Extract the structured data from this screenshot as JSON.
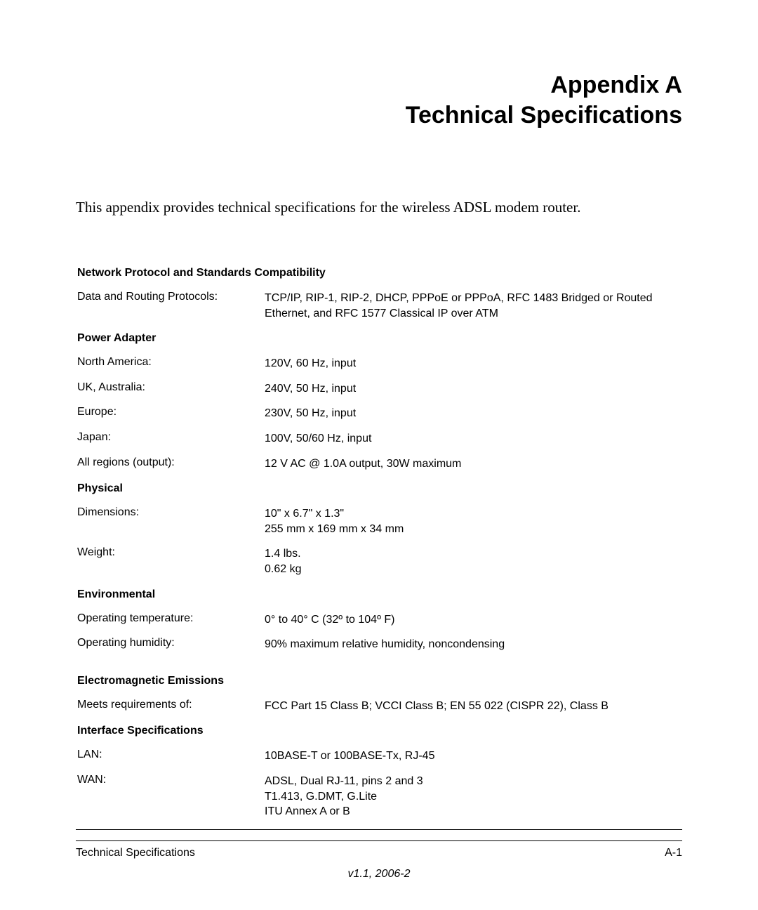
{
  "title": {
    "line1": "Appendix A",
    "line2": "Technical Specifications"
  },
  "intro": "This appendix provides technical specifications for the wireless ADSL modem router.",
  "sections": [
    {
      "header": "Network Protocol and Standards Compatibility",
      "rows": [
        {
          "label": "Data and Routing Protocols:",
          "value": "TCP/IP, RIP-1, RIP-2, DHCP, PPPoE or PPPoA, RFC 1483 Bridged or Routed Ethernet, and RFC 1577 Classical IP over ATM"
        }
      ]
    },
    {
      "header": "Power Adapter",
      "rows": [
        {
          "label": "North America:",
          "value": "120V, 60 Hz, input"
        },
        {
          "label": "UK, Australia:",
          "value": "240V, 50 Hz, input"
        },
        {
          "label": "Europe:",
          "value": "230V, 50 Hz, input"
        },
        {
          "label": "Japan:",
          "value": "100V, 50/60 Hz, input"
        },
        {
          "label": "All regions (output):",
          "value": "12 V AC @ 1.0A output, 30W maximum"
        }
      ]
    },
    {
      "header": "Physical",
      "rows": [
        {
          "label": "Dimensions:",
          "value": "10\" x 6.7\" x 1.3\"\n255 mm x 169 mm x 34 mm"
        },
        {
          "label": "Weight:",
          "value": "1.4 lbs.\n0.62 kg"
        }
      ]
    },
    {
      "header": "Environmental",
      "rows": [
        {
          "label": "Operating temperature:",
          "value": "0° to 40° C    (32º to 104º F)"
        },
        {
          "label": "Operating humidity:",
          "value": "90% maximum relative humidity, noncondensing"
        }
      ],
      "gap_after": true
    },
    {
      "header": "Electromagnetic Emissions",
      "rows": [
        {
          "label": "Meets requirements of:",
          "value": "FCC Part 15 Class B; VCCI Class B; EN 55 022 (CISPR 22), Class B"
        }
      ]
    },
    {
      "header": "Interface Specifications",
      "rows": [
        {
          "label": "LAN:",
          "value": "10BASE-T or 100BASE-Tx, RJ-45"
        },
        {
          "label": "WAN:",
          "value": "ADSL, Dual RJ-11, pins 2 and 3\nT1.413, G.DMT, G.Lite\nITU Annex A or B"
        }
      ]
    }
  ],
  "footer": {
    "left": "Technical Specifications",
    "right": "A-1",
    "version": "v1.1, 2006-2"
  },
  "colors": {
    "text": "#000000",
    "background": "#ffffff",
    "rule": "#000000"
  },
  "typography": {
    "title_fontsize": 34,
    "title_weight": "bold",
    "intro_fontsize": 21,
    "intro_family": "Times New Roman",
    "body_fontsize": 16,
    "body_family": "Arial"
  }
}
